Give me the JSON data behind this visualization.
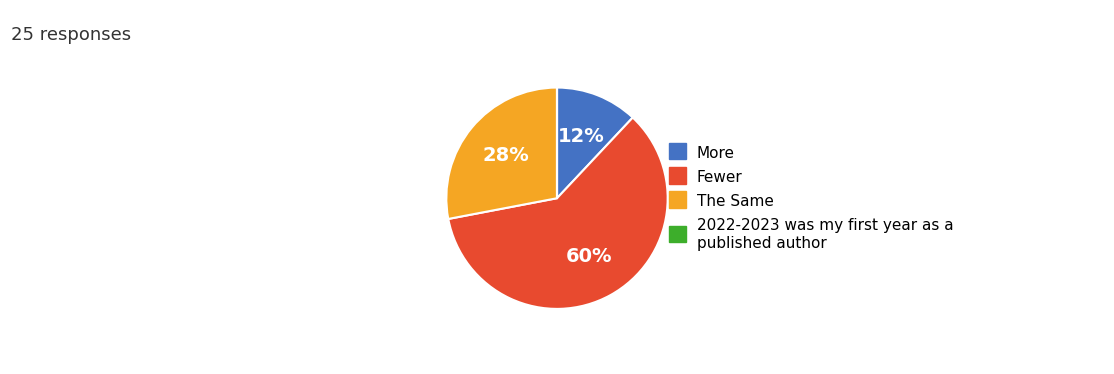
{
  "title": "25 responses",
  "title_fontsize": 13,
  "title_color": "#333333",
  "labels": [
    "More",
    "Fewer",
    "The Same",
    "2022-2023 was my first year as a\npublished author"
  ],
  "values": [
    12,
    60,
    28,
    0
  ],
  "colors": [
    "#4472c4",
    "#e84a2f",
    "#f5a623",
    "#3dae2b"
  ],
  "autopct_labels": [
    "12%",
    "60%",
    "28%",
    ""
  ],
  "legend_labels": [
    "More",
    "Fewer",
    "The Same",
    "2022-2023 was my first year as a\npublished author"
  ],
  "startangle": 90,
  "background_color": "#ffffff",
  "text_color": "#ffffff",
  "autopct_fontsize": 14
}
